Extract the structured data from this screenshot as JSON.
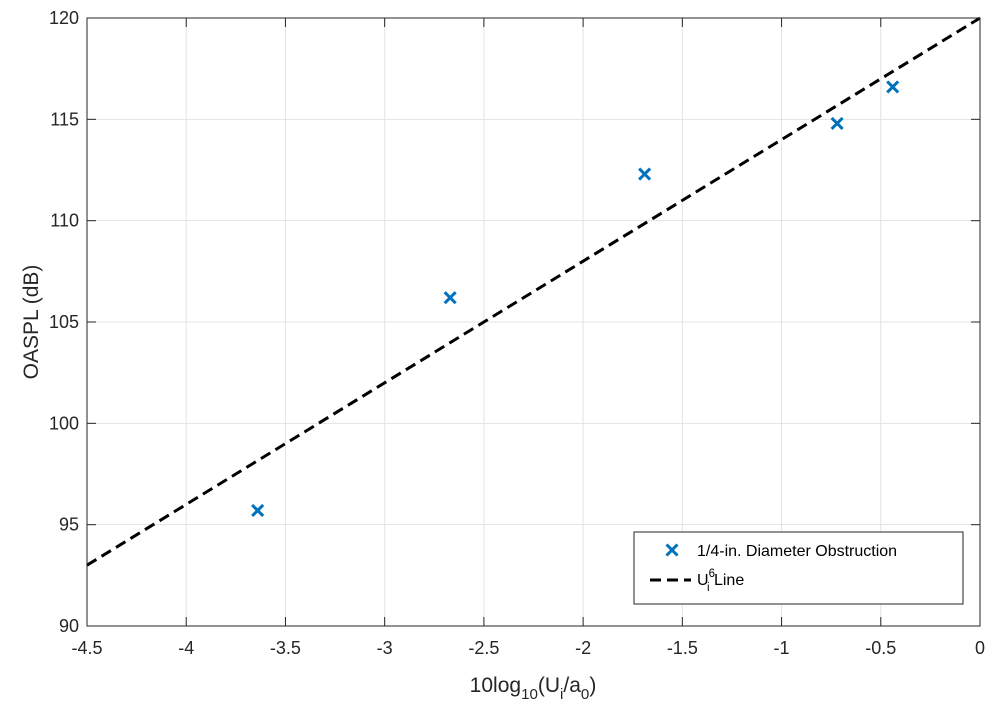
{
  "chart_data": {
    "type": "scatter",
    "xlabel": {
      "parts": [
        {
          "text": "10log",
          "shift": "none"
        },
        {
          "text": "10",
          "shift": "sub"
        },
        {
          "text": "(U",
          "shift": "none"
        },
        {
          "text": "i",
          "shift": "sub"
        },
        {
          "text": "/a",
          "shift": "none"
        },
        {
          "text": "0",
          "shift": "sub"
        },
        {
          "text": ")",
          "shift": "none"
        }
      ]
    },
    "ylabel": "OASPL (dB)",
    "xlim": [
      -4.5,
      0
    ],
    "ylim": [
      90,
      120
    ],
    "xticks": [
      -4.5,
      -4,
      -3.5,
      -3,
      -2.5,
      -2,
      -1.5,
      -1,
      -0.5,
      0
    ],
    "yticks": [
      90,
      95,
      100,
      105,
      110,
      115,
      120
    ],
    "grid": true,
    "legend_position": "bottom-right",
    "series": [
      {
        "name": "1/4-in. Diameter Obstruction",
        "kind": "scatter",
        "marker": "x",
        "color": "#0072BD",
        "x": [
          -3.64,
          -2.67,
          -1.69,
          -0.72,
          -0.44
        ],
        "y": [
          95.7,
          106.2,
          112.3,
          114.8,
          116.6
        ]
      },
      {
        "kind": "line",
        "style": "dashed",
        "color": "#000000",
        "x": [
          -4.5,
          0
        ],
        "y": [
          93,
          120
        ]
      }
    ],
    "legend": [
      {
        "series": 0,
        "parts": [
          {
            "text": "1/4-in. Diameter Obstruction",
            "shift": "none"
          }
        ]
      },
      {
        "series": 1,
        "parts": [
          {
            "text": "U",
            "shift": "none"
          },
          {
            "text": "6",
            "shift": "super"
          },
          {
            "text": "i",
            "shift": "sub"
          },
          {
            "text": " Line",
            "shift": "none"
          }
        ]
      }
    ]
  }
}
